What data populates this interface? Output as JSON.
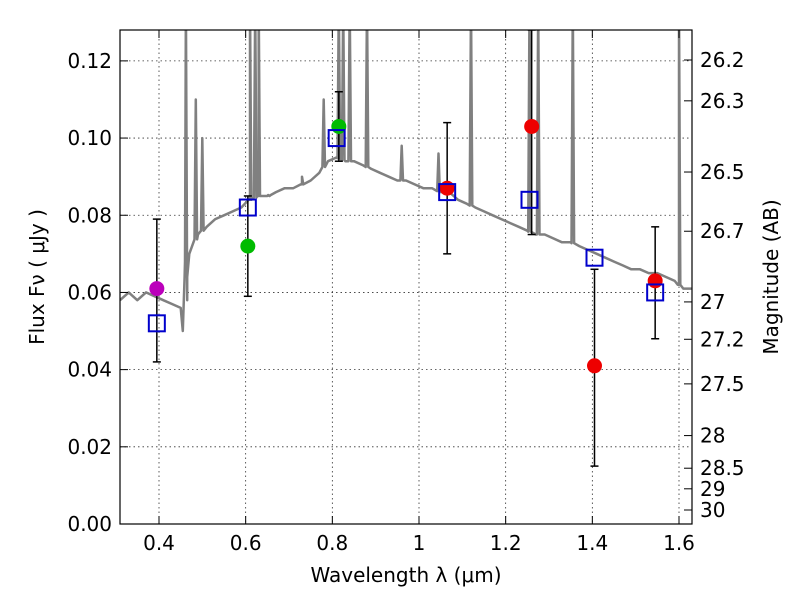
{
  "chart_data": {
    "type": "scatter",
    "title": "",
    "xlabel": "Wavelength  λ (μm)",
    "ylabel": "Flux  Fν  ( μJy )",
    "ylabel_right": "Magnitude (AB)",
    "xlim": [
      0.31,
      1.63
    ],
    "ylim": [
      0.0,
      0.128
    ],
    "grid": true,
    "x_ticks": [
      {
        "value": 0.4,
        "label": "0.4"
      },
      {
        "value": 0.6,
        "label": "0.6"
      },
      {
        "value": 0.8,
        "label": "0.8"
      },
      {
        "value": 1.0,
        "label": "1"
      },
      {
        "value": 1.2,
        "label": "1.2"
      },
      {
        "value": 1.4,
        "label": "1.4"
      },
      {
        "value": 1.6,
        "label": "1.6"
      }
    ],
    "y_ticks": [
      {
        "value": 0.0,
        "label": "0.00"
      },
      {
        "value": 0.02,
        "label": "0.02"
      },
      {
        "value": 0.04,
        "label": "0.04"
      },
      {
        "value": 0.06,
        "label": "0.06"
      },
      {
        "value": 0.08,
        "label": "0.08"
      },
      {
        "value": 0.1,
        "label": "0.10"
      },
      {
        "value": 0.12,
        "label": "0.12"
      }
    ],
    "mag_ticks": [
      {
        "value": 26.2,
        "label": "26.2"
      },
      {
        "value": 26.3,
        "label": "26.3"
      },
      {
        "value": 26.5,
        "label": "26.5"
      },
      {
        "value": 26.7,
        "label": "26.7"
      },
      {
        "value": 27.0,
        "label": "27"
      },
      {
        "value": 27.2,
        "label": "27.2"
      },
      {
        "value": 27.5,
        "label": "27.5"
      },
      {
        "value": 28.0,
        "label": "28"
      },
      {
        "value": 28.5,
        "label": "28.5"
      },
      {
        "value": 29.0,
        "label": "29"
      },
      {
        "value": 30.0,
        "label": "30"
      }
    ],
    "series": [
      {
        "name": "model spectrum",
        "kind": "line",
        "color": "#808080",
        "x": [
          0.31,
          0.33,
          0.35,
          0.37,
          0.39,
          0.41,
          0.43,
          0.45,
          0.455,
          0.46,
          0.465,
          0.47,
          0.49,
          0.51,
          0.53,
          0.55,
          0.57,
          0.59,
          0.61,
          0.63,
          0.65,
          0.67,
          0.69,
          0.71,
          0.73,
          0.75,
          0.77,
          0.79,
          0.81,
          0.83,
          0.85,
          0.87,
          0.89,
          0.91,
          0.93,
          0.95,
          0.97,
          0.99,
          1.01,
          1.03,
          1.05,
          1.07,
          1.09,
          1.11,
          1.13,
          1.15,
          1.17,
          1.19,
          1.21,
          1.23,
          1.25,
          1.27,
          1.29,
          1.31,
          1.33,
          1.35,
          1.37,
          1.39,
          1.41,
          1.43,
          1.45,
          1.47,
          1.49,
          1.51,
          1.53,
          1.55,
          1.57,
          1.59,
          1.6,
          1.61,
          1.63
        ],
        "y": [
          0.058,
          0.06,
          0.058,
          0.06,
          0.059,
          0.058,
          0.057,
          0.056,
          0.05,
          0.068,
          0.058,
          0.07,
          0.075,
          0.077,
          0.079,
          0.08,
          0.081,
          0.082,
          0.084,
          0.085,
          0.085,
          0.086,
          0.087,
          0.087,
          0.088,
          0.089,
          0.091,
          0.094,
          0.095,
          0.094,
          0.094,
          0.093,
          0.092,
          0.091,
          0.09,
          0.089,
          0.089,
          0.088,
          0.087,
          0.087,
          0.086,
          0.086,
          0.084,
          0.083,
          0.082,
          0.081,
          0.08,
          0.079,
          0.078,
          0.077,
          0.076,
          0.075,
          0.075,
          0.074,
          0.073,
          0.073,
          0.072,
          0.071,
          0.07,
          0.069,
          0.068,
          0.067,
          0.066,
          0.066,
          0.065,
          0.065,
          0.064,
          0.063,
          0.062,
          0.061,
          0.061
        ],
        "emission_lines": [
          {
            "x": 0.462,
            "peak": 0.135
          },
          {
            "x": 0.485,
            "peak": 0.11
          },
          {
            "x": 0.5,
            "peak": 0.1
          },
          {
            "x": 0.61,
            "peak": 0.135
          },
          {
            "x": 0.622,
            "peak": 0.135
          },
          {
            "x": 0.63,
            "peak": 0.135
          },
          {
            "x": 0.655,
            "peak": 0.085
          },
          {
            "x": 0.73,
            "peak": 0.09
          },
          {
            "x": 0.78,
            "peak": 0.11
          },
          {
            "x": 0.815,
            "peak": 0.135
          },
          {
            "x": 0.825,
            "peak": 0.135
          },
          {
            "x": 0.84,
            "peak": 0.135
          },
          {
            "x": 0.88,
            "peak": 0.135
          },
          {
            "x": 0.96,
            "peak": 0.098
          },
          {
            "x": 1.045,
            "peak": 0.096
          },
          {
            "x": 1.12,
            "peak": 0.135
          },
          {
            "x": 1.255,
            "peak": 0.135
          },
          {
            "x": 1.275,
            "peak": 0.135
          },
          {
            "x": 1.355,
            "peak": 0.135
          },
          {
            "x": 1.6,
            "peak": 0.135
          }
        ]
      },
      {
        "name": "observed (violet)",
        "kind": "point",
        "marker": "circle",
        "color": "#bb00bb",
        "x": [
          0.395
        ],
        "y": [
          0.061
        ]
      },
      {
        "name": "observed (green)",
        "kind": "point",
        "marker": "circle",
        "color": "#00bb00",
        "x": [
          0.605,
          0.815
        ],
        "y": [
          0.072,
          0.103
        ]
      },
      {
        "name": "observed (red)",
        "kind": "point",
        "marker": "circle",
        "color": "#ee0000",
        "x": [
          1.065,
          1.26,
          1.405,
          1.545
        ],
        "y": [
          0.087,
          0.103,
          0.041,
          0.063
        ]
      },
      {
        "name": "model photometry",
        "kind": "point",
        "marker": "open-square",
        "color": "#0000cc",
        "x": [
          0.395,
          0.605,
          0.81,
          1.065,
          1.255,
          1.405,
          1.545
        ],
        "y": [
          0.052,
          0.082,
          0.1,
          0.086,
          0.084,
          0.069,
          0.06
        ]
      }
    ],
    "error_bars": [
      {
        "x": 0.395,
        "low": 0.042,
        "high": 0.079
      },
      {
        "x": 0.605,
        "low": 0.059,
        "high": 0.085
      },
      {
        "x": 0.815,
        "low": 0.094,
        "high": 0.112
      },
      {
        "x": 1.065,
        "low": 0.07,
        "high": 0.104
      },
      {
        "x": 1.26,
        "low": 0.075,
        "high": 0.128
      },
      {
        "x": 1.405,
        "low": 0.015,
        "high": 0.066
      },
      {
        "x": 1.545,
        "low": 0.048,
        "high": 0.077
      }
    ]
  }
}
